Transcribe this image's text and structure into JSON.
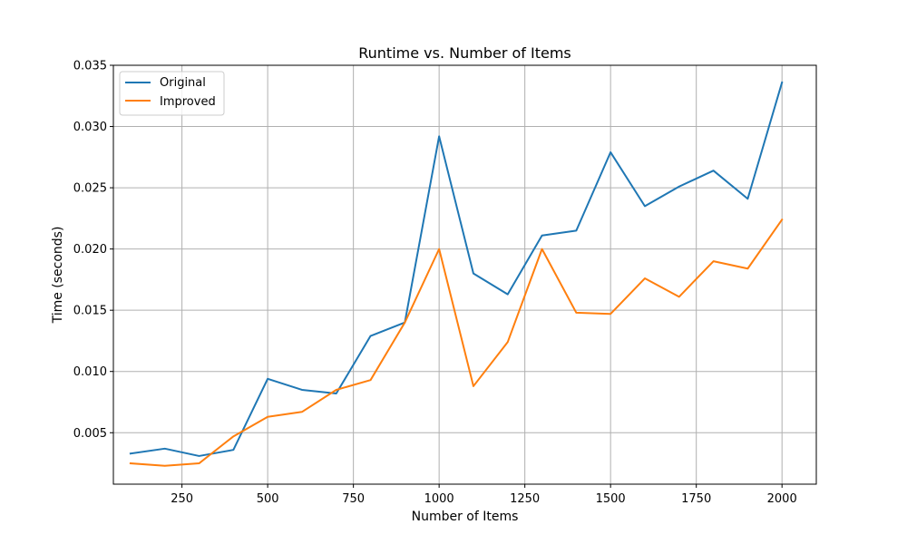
{
  "chart_data": {
    "type": "line",
    "title": "Runtime vs. Number of Items",
    "xlabel": "Number of Items",
    "ylabel": "Time (seconds)",
    "xlim": [
      50,
      2100
    ],
    "ylim": [
      0.0008,
      0.035
    ],
    "xticks": [
      250,
      500,
      750,
      1000,
      1250,
      1500,
      1750,
      2000
    ],
    "xtick_labels": [
      "250",
      "500",
      "750",
      "1000",
      "1250",
      "1500",
      "1750",
      "2000"
    ],
    "yticks": [
      0.005,
      0.01,
      0.015,
      0.02,
      0.025,
      0.03,
      0.035
    ],
    "ytick_labels": [
      "0.005",
      "0.010",
      "0.015",
      "0.020",
      "0.025",
      "0.030",
      "0.035"
    ],
    "grid": true,
    "legend_position": "top-left",
    "x": [
      100,
      200,
      300,
      400,
      500,
      600,
      700,
      800,
      900,
      1000,
      1100,
      1200,
      1300,
      1400,
      1500,
      1600,
      1700,
      1800,
      1900,
      2000
    ],
    "series": [
      {
        "name": "Original",
        "color": "#1f77b4",
        "values": [
          0.0033,
          0.0037,
          0.0031,
          0.0036,
          0.0094,
          0.0085,
          0.0082,
          0.0129,
          0.014,
          0.0292,
          0.018,
          0.0163,
          0.0211,
          0.0215,
          0.0279,
          0.0235,
          0.0251,
          0.0264,
          0.0241,
          0.0336
        ]
      },
      {
        "name": "Improved",
        "color": "#ff7f0e",
        "values": [
          0.0025,
          0.0023,
          0.0025,
          0.0047,
          0.0063,
          0.0067,
          0.0085,
          0.0093,
          0.014,
          0.02,
          0.0088,
          0.0124,
          0.02,
          0.0148,
          0.0147,
          0.0176,
          0.0161,
          0.019,
          0.0184,
          0.0224
        ]
      }
    ]
  }
}
